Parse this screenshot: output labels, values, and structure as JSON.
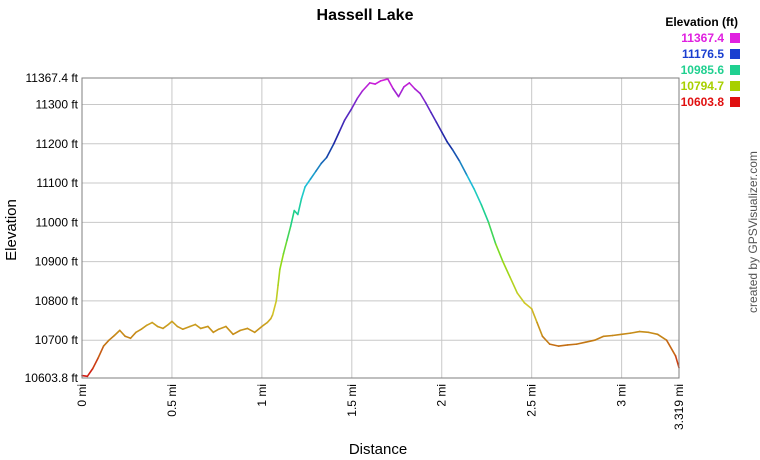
{
  "chart_data": {
    "type": "line",
    "title": "Hassell Lake",
    "xlabel": "Distance",
    "ylabel": "Elevation",
    "xlim": [
      0,
      3.319
    ],
    "ylim": [
      10603.8,
      11367.4
    ],
    "x_ticks": [
      {
        "value": 0,
        "label": "0 mi"
      },
      {
        "value": 0.5,
        "label": "0.5 mi"
      },
      {
        "value": 1,
        "label": "1 mi"
      },
      {
        "value": 1.5,
        "label": "1.5 mi"
      },
      {
        "value": 2,
        "label": "2 mi"
      },
      {
        "value": 2.5,
        "label": "2.5 mi"
      },
      {
        "value": 3,
        "label": "3 mi"
      },
      {
        "value": 3.319,
        "label": "3.319 mi"
      }
    ],
    "y_ticks": [
      {
        "value": 10603.8,
        "label": "10603.8 ft"
      },
      {
        "value": 10700,
        "label": "10700 ft"
      },
      {
        "value": 10800,
        "label": "10800 ft"
      },
      {
        "value": 10900,
        "label": "10900 ft"
      },
      {
        "value": 11000,
        "label": "11000 ft"
      },
      {
        "value": 11100,
        "label": "11100 ft"
      },
      {
        "value": 11200,
        "label": "11200 ft"
      },
      {
        "value": 11300,
        "label": "11300 ft"
      },
      {
        "value": 11367.4,
        "label": "11367.4 ft"
      }
    ],
    "grid": true,
    "legend": {
      "title": "Elevation (ft)",
      "placement": "top-right",
      "entries": [
        {
          "label": "11367.4",
          "color": "#e020e0"
        },
        {
          "label": "11176.5",
          "color": "#1a3fd0"
        },
        {
          "label": "10985.6",
          "color": "#20d090"
        },
        {
          "label": "10794.7",
          "color": "#a8d000"
        },
        {
          "label": "10603.8",
          "color": "#e01010"
        }
      ]
    },
    "credit": "created by GPSVisualizer.com",
    "series": [
      {
        "x": [
          0,
          0.03,
          0.06,
          0.09,
          0.12,
          0.15,
          0.18,
          0.21,
          0.24,
          0.27,
          0.3,
          0.33,
          0.36,
          0.39,
          0.42,
          0.45,
          0.48,
          0.5,
          0.53,
          0.56,
          0.6,
          0.63,
          0.66,
          0.7,
          0.73,
          0.76,
          0.8,
          0.84,
          0.88,
          0.92,
          0.96,
          1.0,
          1.03,
          1.05,
          1.06,
          1.08,
          1.09,
          1.1,
          1.12,
          1.14,
          1.16,
          1.18,
          1.2,
          1.22,
          1.24,
          1.27,
          1.3,
          1.33,
          1.36,
          1.4,
          1.43,
          1.46,
          1.5,
          1.53,
          1.56,
          1.6,
          1.63,
          1.66,
          1.7,
          1.73,
          1.76,
          1.79,
          1.82,
          1.85,
          1.88,
          1.91,
          1.94,
          1.97,
          2.0,
          2.03,
          2.06,
          2.1,
          2.14,
          2.18,
          2.22,
          2.26,
          2.3,
          2.34,
          2.38,
          2.42,
          2.46,
          2.5,
          2.53,
          2.56,
          2.6,
          2.65,
          2.7,
          2.75,
          2.8,
          2.85,
          2.9,
          2.95,
          3.0,
          3.05,
          3.1,
          3.15,
          3.2,
          3.25,
          3.3,
          3.319
        ],
        "y": [
          10610,
          10608,
          10628,
          10655,
          10685,
          10700,
          10712,
          10725,
          10710,
          10705,
          10720,
          10728,
          10738,
          10745,
          10735,
          10730,
          10740,
          10748,
          10735,
          10728,
          10735,
          10740,
          10730,
          10735,
          10720,
          10728,
          10735,
          10715,
          10725,
          10730,
          10720,
          10735,
          10745,
          10755,
          10765,
          10800,
          10840,
          10880,
          10920,
          10955,
          10990,
          11030,
          11020,
          11060,
          11090,
          11110,
          11130,
          11150,
          11165,
          11200,
          11230,
          11260,
          11290,
          11315,
          11335,
          11355,
          11352,
          11360,
          11365,
          11340,
          11320,
          11345,
          11355,
          11340,
          11328,
          11305,
          11280,
          11255,
          11230,
          11205,
          11185,
          11155,
          11120,
          11085,
          11045,
          11000,
          10945,
          10900,
          10860,
          10820,
          10795,
          10780,
          10745,
          10710,
          10690,
          10685,
          10688,
          10690,
          10695,
          10700,
          10710,
          10712,
          10715,
          10718,
          10722,
          10720,
          10715,
          10700,
          10660,
          10630
        ]
      }
    ]
  }
}
